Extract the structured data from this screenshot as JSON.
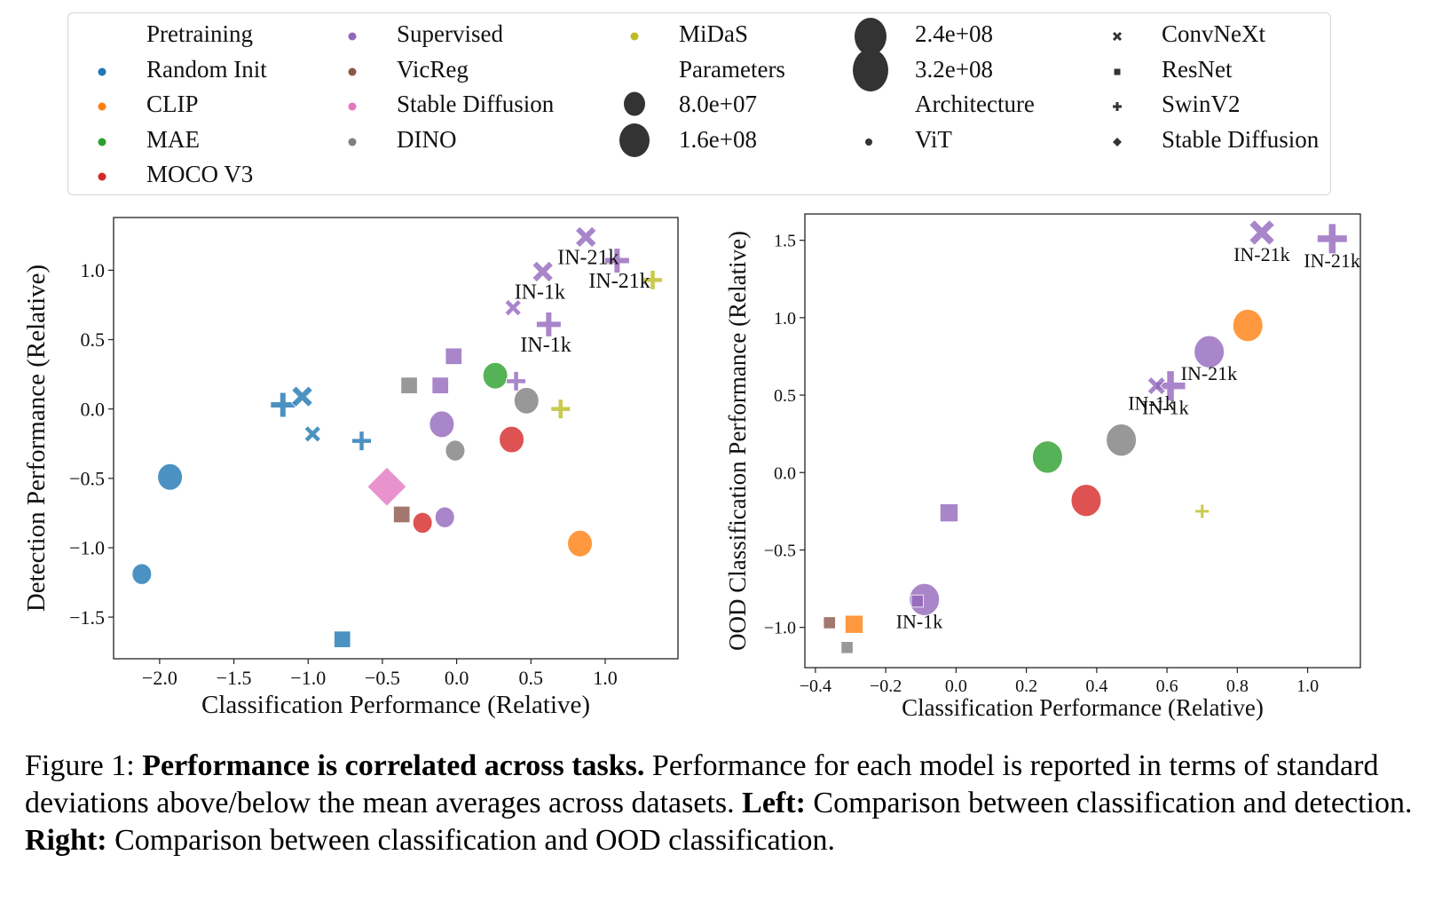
{
  "legend": {
    "pretraining_title": "Pretraining",
    "pretraining": [
      {
        "label": "Random Init",
        "color": "#1f77b4"
      },
      {
        "label": "CLIP",
        "color": "#ff7f0e"
      },
      {
        "label": "MAE",
        "color": "#2ca02c"
      },
      {
        "label": "MOCO V3",
        "color": "#d62728"
      },
      {
        "label": "Supervised",
        "color": "#9467bd"
      },
      {
        "label": "VicReg",
        "color": "#8c564b"
      },
      {
        "label": "Stable Diffusion",
        "color": "#e377c2"
      },
      {
        "label": "DINO",
        "color": "#7f7f7f"
      },
      {
        "label": "MiDaS",
        "color": "#bcbd22"
      }
    ],
    "parameters_title": "Parameters",
    "parameters": [
      {
        "label": "8.0e+07",
        "value": 80000000
      },
      {
        "label": "1.6e+08",
        "value": 160000000
      },
      {
        "label": "2.4e+08",
        "value": 240000000
      },
      {
        "label": "3.2e+08",
        "value": 320000000
      }
    ],
    "architecture_title": "Architecture",
    "architecture": [
      {
        "label": "ViT",
        "marker": "circle"
      },
      {
        "label": "ConvNeXt",
        "marker": "x"
      },
      {
        "label": "ResNet",
        "marker": "square"
      },
      {
        "label": "SwinV2",
        "marker": "plus"
      },
      {
        "label": "Stable Diffusion",
        "marker": "diamond"
      }
    ]
  },
  "chart_data": [
    {
      "type": "scatter",
      "title": "",
      "xlabel": "Classification Performance (Relative)",
      "ylabel": "Detection Performance (Relative)",
      "xlim": [
        -2.31,
        1.49
      ],
      "ylim": [
        -1.8,
        1.38
      ],
      "xticks": [
        -2.0,
        -1.5,
        -1.0,
        -0.5,
        0.0,
        0.5,
        1.0
      ],
      "xtick_labels": [
        "−2.0",
        "−1.5",
        "−1.0",
        "−0.5",
        "0.0",
        "0.5",
        "1.0"
      ],
      "yticks": [
        -1.5,
        -1.0,
        -0.5,
        0.0,
        0.5,
        1.0
      ],
      "ytick_labels": [
        "−1.5",
        "−1.0",
        "−0.5",
        "0.0",
        "0.5",
        "1.0"
      ],
      "grid": false,
      "points": [
        {
          "pretraining": "Random Init",
          "arch": "circle",
          "x": -1.93,
          "y": -0.49,
          "size": 2,
          "label": ""
        },
        {
          "pretraining": "Random Init",
          "arch": "circle",
          "x": -2.12,
          "y": -1.19,
          "size": 1,
          "label": ""
        },
        {
          "pretraining": "Random Init",
          "arch": "plus",
          "x": -1.17,
          "y": 0.03,
          "size": 2,
          "label": ""
        },
        {
          "pretraining": "Random Init",
          "arch": "x",
          "x": -1.04,
          "y": 0.09,
          "size": 2,
          "label": ""
        },
        {
          "pretraining": "Random Init",
          "arch": "x",
          "x": -0.97,
          "y": -0.18,
          "size": 1,
          "label": ""
        },
        {
          "pretraining": "Random Init",
          "arch": "plus",
          "x": -0.64,
          "y": -0.23,
          "size": 1,
          "label": ""
        },
        {
          "pretraining": "Random Init",
          "arch": "square",
          "x": -0.77,
          "y": -1.66,
          "size": 1,
          "label": ""
        },
        {
          "pretraining": "Stable Diffusion",
          "arch": "diamond",
          "x": -0.47,
          "y": -0.56,
          "size": 4,
          "label": ""
        },
        {
          "pretraining": "VicReg",
          "arch": "square",
          "x": -0.37,
          "y": -0.76,
          "size": 1,
          "label": ""
        },
        {
          "pretraining": "MOCO V3",
          "arch": "circle",
          "x": -0.23,
          "y": -0.82,
          "size": 1,
          "label": ""
        },
        {
          "pretraining": "Supervised",
          "arch": "circle",
          "x": -0.08,
          "y": -0.78,
          "size": 1,
          "label": ""
        },
        {
          "pretraining": "DINO",
          "arch": "square",
          "x": -0.32,
          "y": 0.17,
          "size": 1,
          "label": ""
        },
        {
          "pretraining": "Supervised",
          "arch": "square",
          "x": -0.11,
          "y": 0.17,
          "size": 1,
          "label": ""
        },
        {
          "pretraining": "Supervised",
          "arch": "square",
          "x": -0.02,
          "y": 0.38,
          "size": 1,
          "label": ""
        },
        {
          "pretraining": "Supervised",
          "arch": "circle",
          "x": -0.1,
          "y": -0.11,
          "size": 2,
          "label": ""
        },
        {
          "pretraining": "DINO",
          "arch": "circle",
          "x": -0.01,
          "y": -0.3,
          "size": 1,
          "label": ""
        },
        {
          "pretraining": "MAE",
          "arch": "circle",
          "x": 0.26,
          "y": 0.24,
          "size": 2,
          "label": ""
        },
        {
          "pretraining": "Supervised",
          "arch": "plus",
          "x": 0.4,
          "y": 0.2,
          "size": 1,
          "label": ""
        },
        {
          "pretraining": "DINO",
          "arch": "circle",
          "x": 0.47,
          "y": 0.06,
          "size": 2,
          "label": ""
        },
        {
          "pretraining": "MOCO V3",
          "arch": "circle",
          "x": 0.37,
          "y": -0.22,
          "size": 2,
          "label": ""
        },
        {
          "pretraining": "MiDaS",
          "arch": "plus",
          "x": 0.7,
          "y": 0.0,
          "size": 1,
          "label": ""
        },
        {
          "pretraining": "CLIP",
          "arch": "circle",
          "x": 0.83,
          "y": -0.97,
          "size": 2,
          "label": ""
        },
        {
          "pretraining": "Supervised",
          "arch": "x",
          "x": 0.38,
          "y": 0.73,
          "size": 1,
          "label": ""
        },
        {
          "pretraining": "Supervised",
          "arch": "plus",
          "x": 0.62,
          "y": 0.61,
          "size": 2,
          "label": "IN-1k"
        },
        {
          "pretraining": "Supervised",
          "arch": "x",
          "x": 0.58,
          "y": 0.99,
          "size": 2,
          "label": "IN-1k"
        },
        {
          "pretraining": "Supervised",
          "arch": "x",
          "x": 0.87,
          "y": 1.24,
          "size": 2,
          "label": "IN-21k"
        },
        {
          "pretraining": "Supervised",
          "arch": "plus",
          "x": 1.08,
          "y": 1.07,
          "size": 2,
          "label": "IN-21k"
        },
        {
          "pretraining": "MiDaS",
          "arch": "plus",
          "x": 1.32,
          "y": 0.93,
          "size": 1,
          "label": ""
        }
      ]
    },
    {
      "type": "scatter",
      "title": "",
      "xlabel": "Classification Performance (Relative)",
      "ylabel": "OOD Classification Performance (Relative)",
      "xlim": [
        -0.43,
        1.15
      ],
      "ylim": [
        -1.26,
        1.67
      ],
      "xticks": [
        -0.4,
        -0.2,
        0.0,
        0.2,
        0.4,
        0.6,
        0.8,
        1.0
      ],
      "xtick_labels": [
        "−0.4",
        "−0.2",
        "0.0",
        "0.2",
        "0.4",
        "0.6",
        "0.8",
        "1.0"
      ],
      "yticks": [
        -1.0,
        -0.5,
        0.0,
        0.5,
        1.0,
        1.5
      ],
      "ytick_labels": [
        "−1.0",
        "−0.5",
        "0.0",
        "0.5",
        "1.0",
        "1.5"
      ],
      "grid": false,
      "points": [
        {
          "pretraining": "VicReg",
          "arch": "square",
          "x": -0.36,
          "y": -0.97,
          "size": 1,
          "label": ""
        },
        {
          "pretraining": "CLIP",
          "arch": "square",
          "x": -0.29,
          "y": -0.98,
          "size": 2,
          "label": ""
        },
        {
          "pretraining": "DINO",
          "arch": "square",
          "x": -0.31,
          "y": -1.13,
          "size": 1,
          "label": ""
        },
        {
          "pretraining": "Supervised",
          "arch": "circle",
          "x": -0.09,
          "y": -0.82,
          "size": 3,
          "label": "IN-1k"
        },
        {
          "pretraining": "Supervised",
          "arch": "square",
          "x": -0.11,
          "y": -0.83,
          "size": 1,
          "label": ""
        },
        {
          "pretraining": "Supervised",
          "arch": "square",
          "x": -0.02,
          "y": -0.26,
          "size": 2,
          "label": ""
        },
        {
          "pretraining": "MAE",
          "arch": "circle",
          "x": 0.26,
          "y": 0.1,
          "size": 3,
          "label": ""
        },
        {
          "pretraining": "MOCO V3",
          "arch": "circle",
          "x": 0.37,
          "y": -0.18,
          "size": 3,
          "label": ""
        },
        {
          "pretraining": "DINO",
          "arch": "circle",
          "x": 0.47,
          "y": 0.21,
          "size": 3,
          "label": ""
        },
        {
          "pretraining": "MiDaS",
          "arch": "plus",
          "x": 0.7,
          "y": -0.25,
          "size": 1,
          "label": ""
        },
        {
          "pretraining": "Supervised",
          "arch": "x",
          "x": 0.57,
          "y": 0.56,
          "size": 2,
          "label": "IN-1k"
        },
        {
          "pretraining": "Supervised",
          "arch": "plus",
          "x": 0.61,
          "y": 0.56,
          "size": 3,
          "label": "IN-1k"
        },
        {
          "pretraining": "Supervised",
          "arch": "circle",
          "x": 0.72,
          "y": 0.78,
          "size": 3,
          "label": "IN-21k"
        },
        {
          "pretraining": "CLIP",
          "arch": "circle",
          "x": 0.83,
          "y": 0.95,
          "size": 3,
          "label": ""
        },
        {
          "pretraining": "Supervised",
          "arch": "x",
          "x": 0.87,
          "y": 1.55,
          "size": 3,
          "label": "IN-21k"
        },
        {
          "pretraining": "Supervised",
          "arch": "plus",
          "x": 1.07,
          "y": 1.51,
          "size": 3,
          "label": "IN-21k"
        }
      ]
    }
  ],
  "caption": {
    "prefix": "Figure 1: ",
    "bold1": "Performance is correlated across tasks.",
    "text1": " Performance for each model is reported in terms of standard deviations above/below the mean averages across datasets. ",
    "bold2": "Left:",
    "text2": " Comparison between classification and detection. ",
    "bold3": "Right:",
    "text3": " Comparison between classification and OOD classification."
  }
}
